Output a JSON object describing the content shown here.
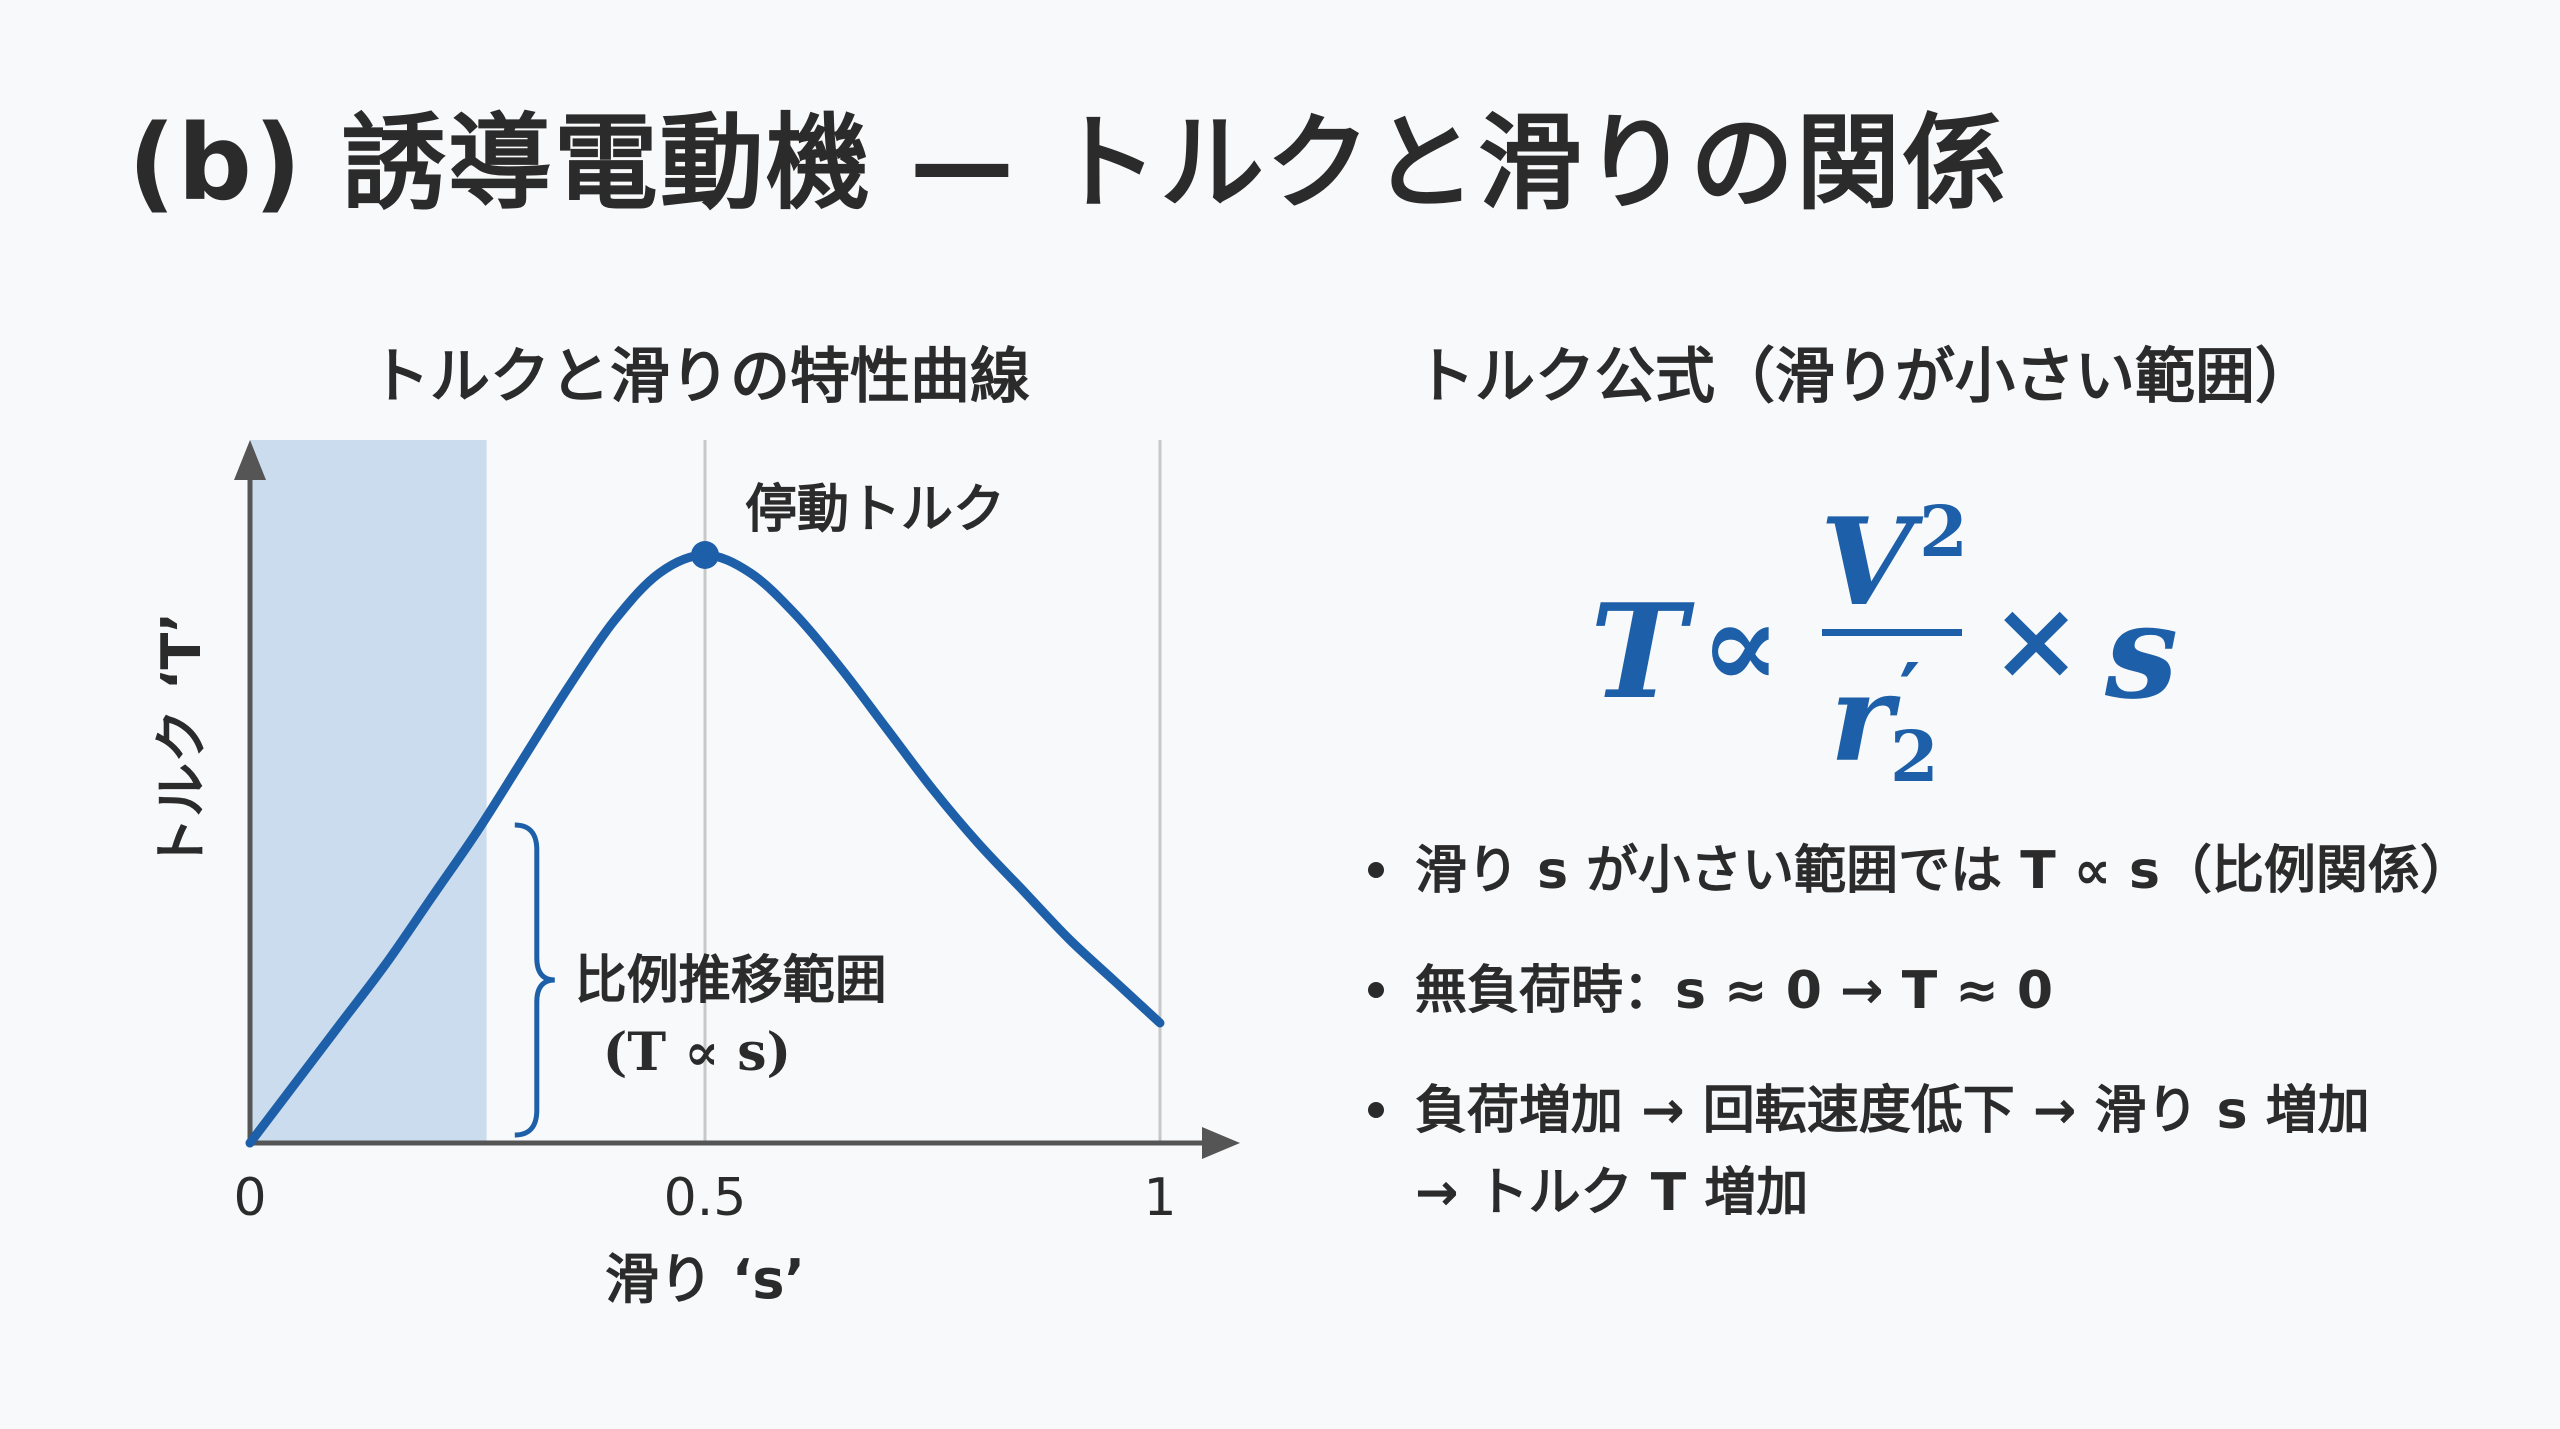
{
  "title": "(b) 誘導電動機 — トルクと滑りの関係",
  "chart_title": "トルクと滑りの特性曲線",
  "formula_title": "トルク公式（滑りが小さい範囲）",
  "formula": {
    "lhs": "T",
    "relation": "∝",
    "numerator": "V",
    "numerator_exp": "2",
    "denominator": "r",
    "denominator_prime": "′",
    "denominator_sub": "2",
    "times": "×",
    "rhs": "s"
  },
  "bullets": [
    {
      "text": "滑り s が小さい範囲では T ∝ s（比例関係）"
    },
    {
      "text": "無負荷時：s ≈ 0 → T ≈ 0"
    },
    {
      "text": "負荷増加 → 回転速度低下 → 滑り s 増加",
      "text2": "→ トルク T 増加"
    }
  ],
  "colors": {
    "curve": "#1d5fa8",
    "shaded_region": "#cbdcee",
    "text": "#2b2b2b",
    "axis": "#555555",
    "guide_line": "#c8c8c8"
  },
  "chart_data": {
    "type": "line",
    "xlabel": "滑り ‘s’",
    "ylabel": "トルク ‘T’",
    "xlim": [
      0,
      1
    ],
    "ylim": [
      0,
      1.0
    ],
    "x_ticks": [
      {
        "value": 0,
        "label": "0"
      },
      {
        "value": 0.5,
        "label": "0.5"
      },
      {
        "value": 1,
        "label": "1"
      }
    ],
    "guide_lines_x": [
      0.5,
      1
    ],
    "series": [
      {
        "x": [
          0,
          0.05,
          0.1,
          0.15,
          0.2,
          0.25,
          0.3,
          0.35,
          0.4,
          0.45,
          0.5,
          0.55,
          0.6,
          0.65,
          0.7,
          0.75,
          0.8,
          0.85,
          0.9,
          0.95,
          1.0
        ],
        "y": [
          0,
          0.1,
          0.2,
          0.3,
          0.41,
          0.52,
          0.64,
          0.76,
          0.87,
          0.95,
          0.98,
          0.95,
          0.88,
          0.79,
          0.69,
          0.59,
          0.5,
          0.42,
          0.34,
          0.27,
          0.2
        ]
      }
    ],
    "shaded_region": {
      "x_start": 0,
      "x_end": 0.26
    },
    "peak": {
      "x": 0.5,
      "y": 0.98,
      "label": "停動トルク"
    },
    "bracket": {
      "x": 0.28,
      "y_start": 0,
      "y_end": 0.53,
      "label": "比例推移範囲",
      "label2": "(T ∝ s)"
    }
  }
}
